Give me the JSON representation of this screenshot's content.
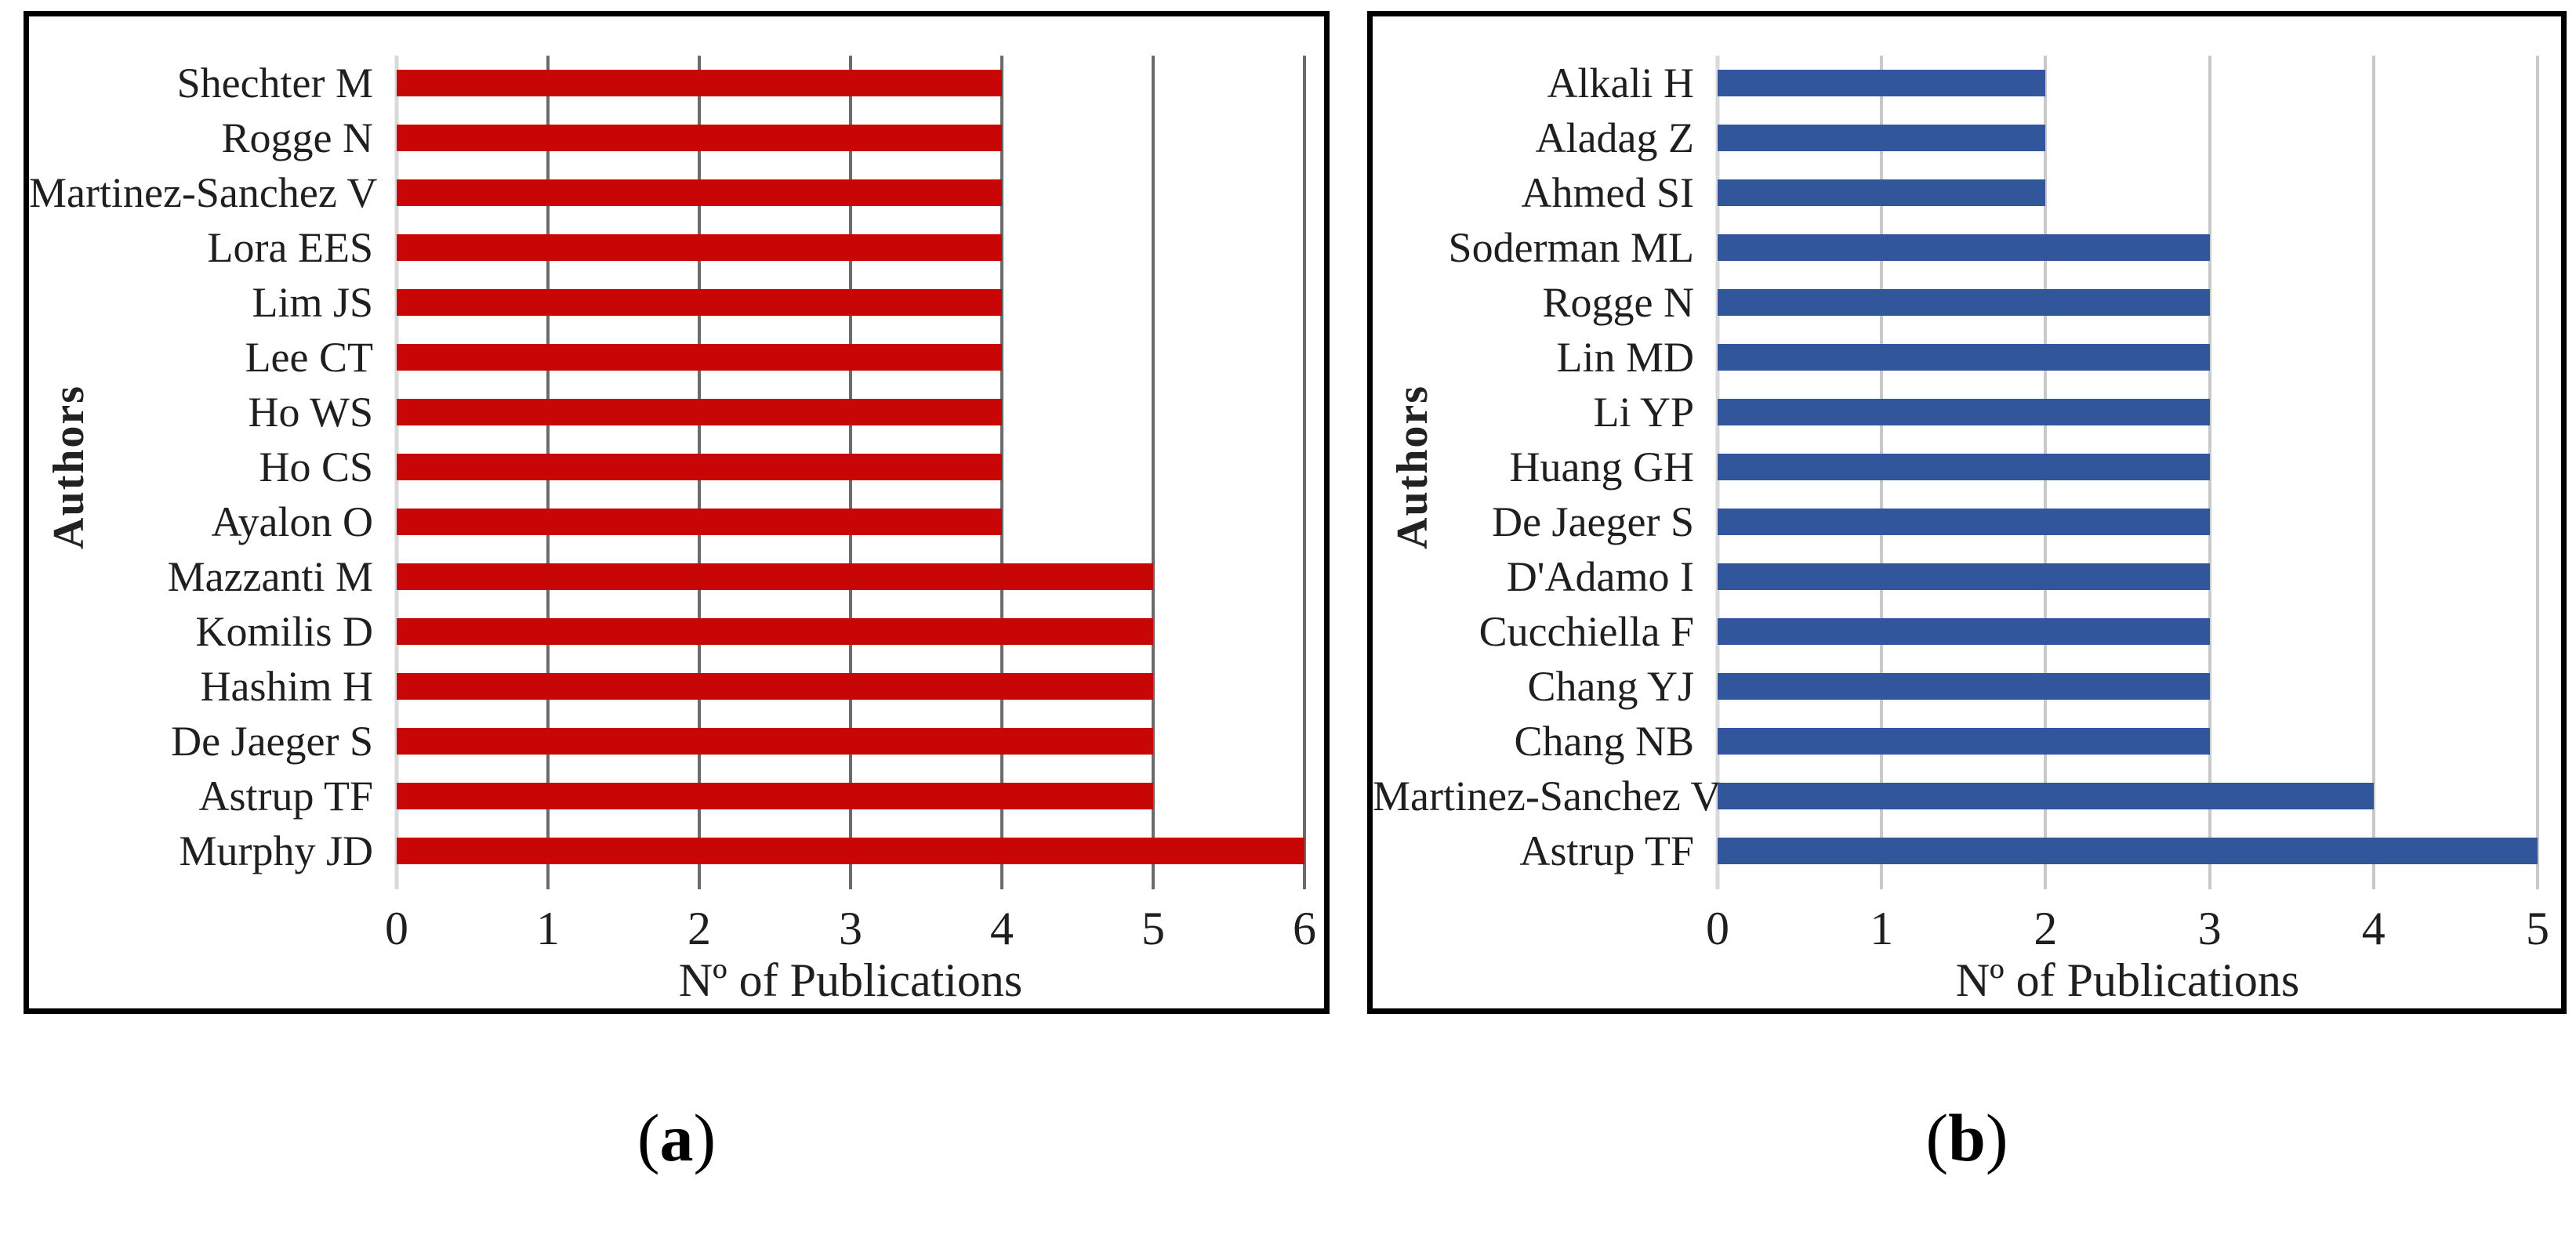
{
  "chart_data": [
    {
      "type": "bar",
      "orientation": "horizontal",
      "panel": "a",
      "title": "",
      "categories": [
        "Shechter M",
        "Rogge N",
        "Martinez-Sanchez V",
        "Lora EES",
        "Lim JS",
        "Lee CT",
        "Ho WS",
        "Ho CS",
        "Ayalon O",
        "Mazzanti M",
        "Komilis D",
        "Hashim H",
        "De Jaeger S",
        "Astrup TF",
        "Murphy JD"
      ],
      "values": [
        4,
        4,
        4,
        4,
        4,
        4,
        4,
        4,
        4,
        5,
        5,
        5,
        5,
        5,
        6
      ],
      "xlabel": "Nº of Publications",
      "ylabel": "Authors",
      "xlim": [
        0,
        6
      ],
      "xticks": [
        0,
        1,
        2,
        3,
        4,
        5,
        6
      ],
      "bar_color": "#c90606",
      "grid": true,
      "legend": "none",
      "caption": {
        "open": "(",
        "letter": "a",
        "close": ")"
      }
    },
    {
      "type": "bar",
      "orientation": "horizontal",
      "panel": "b",
      "title": "",
      "categories": [
        "Alkali H",
        "Aladag Z",
        "Ahmed SI",
        "Soderman ML",
        "Rogge N",
        "Lin MD",
        "Li YP",
        "Huang GH",
        "De Jaeger S",
        "D'Adamo I",
        "Cucchiella F",
        "Chang YJ",
        "Chang NB",
        "Martinez-Sanchez V",
        "Astrup TF"
      ],
      "values": [
        2,
        2,
        2,
        3,
        3,
        3,
        3,
        3,
        3,
        3,
        3,
        3,
        3,
        4,
        5
      ],
      "xlabel": "Nº of Publications",
      "ylabel": "Authors",
      "xlim": [
        0,
        5
      ],
      "xticks": [
        0,
        1,
        2,
        3,
        4,
        5
      ],
      "bar_color": "#31569b",
      "grid": true,
      "legend": "none",
      "caption": {
        "open": "(",
        "letter": "b",
        "close": ")"
      }
    }
  ]
}
